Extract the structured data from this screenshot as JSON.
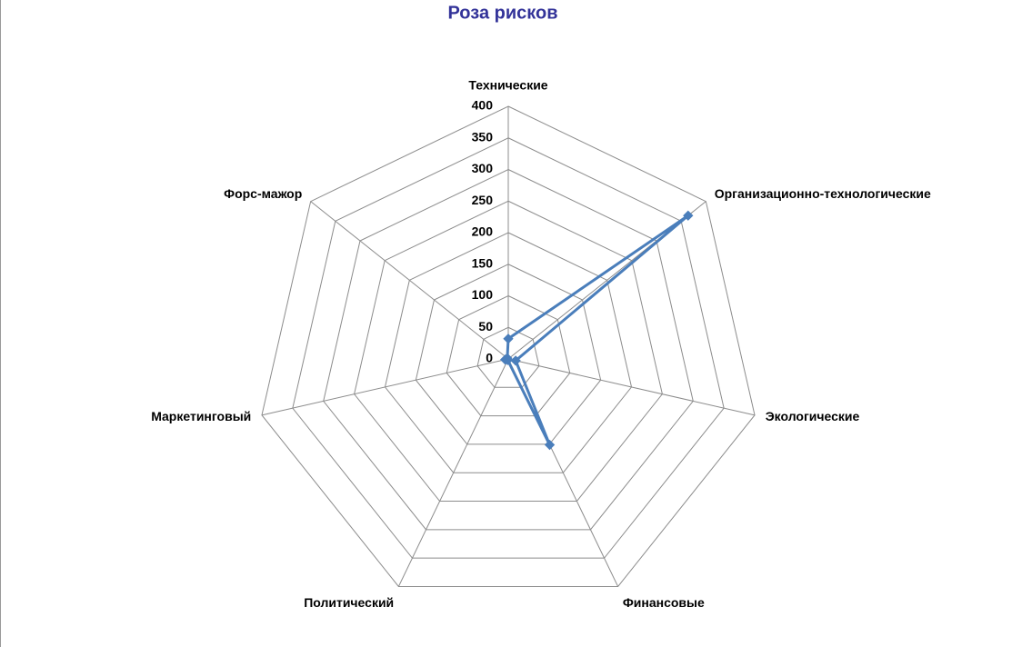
{
  "chart_data": {
    "type": "radar",
    "title": "Роза рисков",
    "categories": [
      "Технические",
      "Организационно-технологические",
      "Экологические",
      "Финансовые",
      "Политический",
      "Маркетинговый",
      "Форс-мажор"
    ],
    "values": [
      32,
      364,
      12,
      151,
      2,
      5,
      2
    ],
    "color": "#4a7ebb",
    "ylim": [
      0,
      400
    ],
    "yticks": [
      0,
      50,
      100,
      150,
      200,
      250,
      300,
      350,
      400
    ],
    "grid": true
  }
}
